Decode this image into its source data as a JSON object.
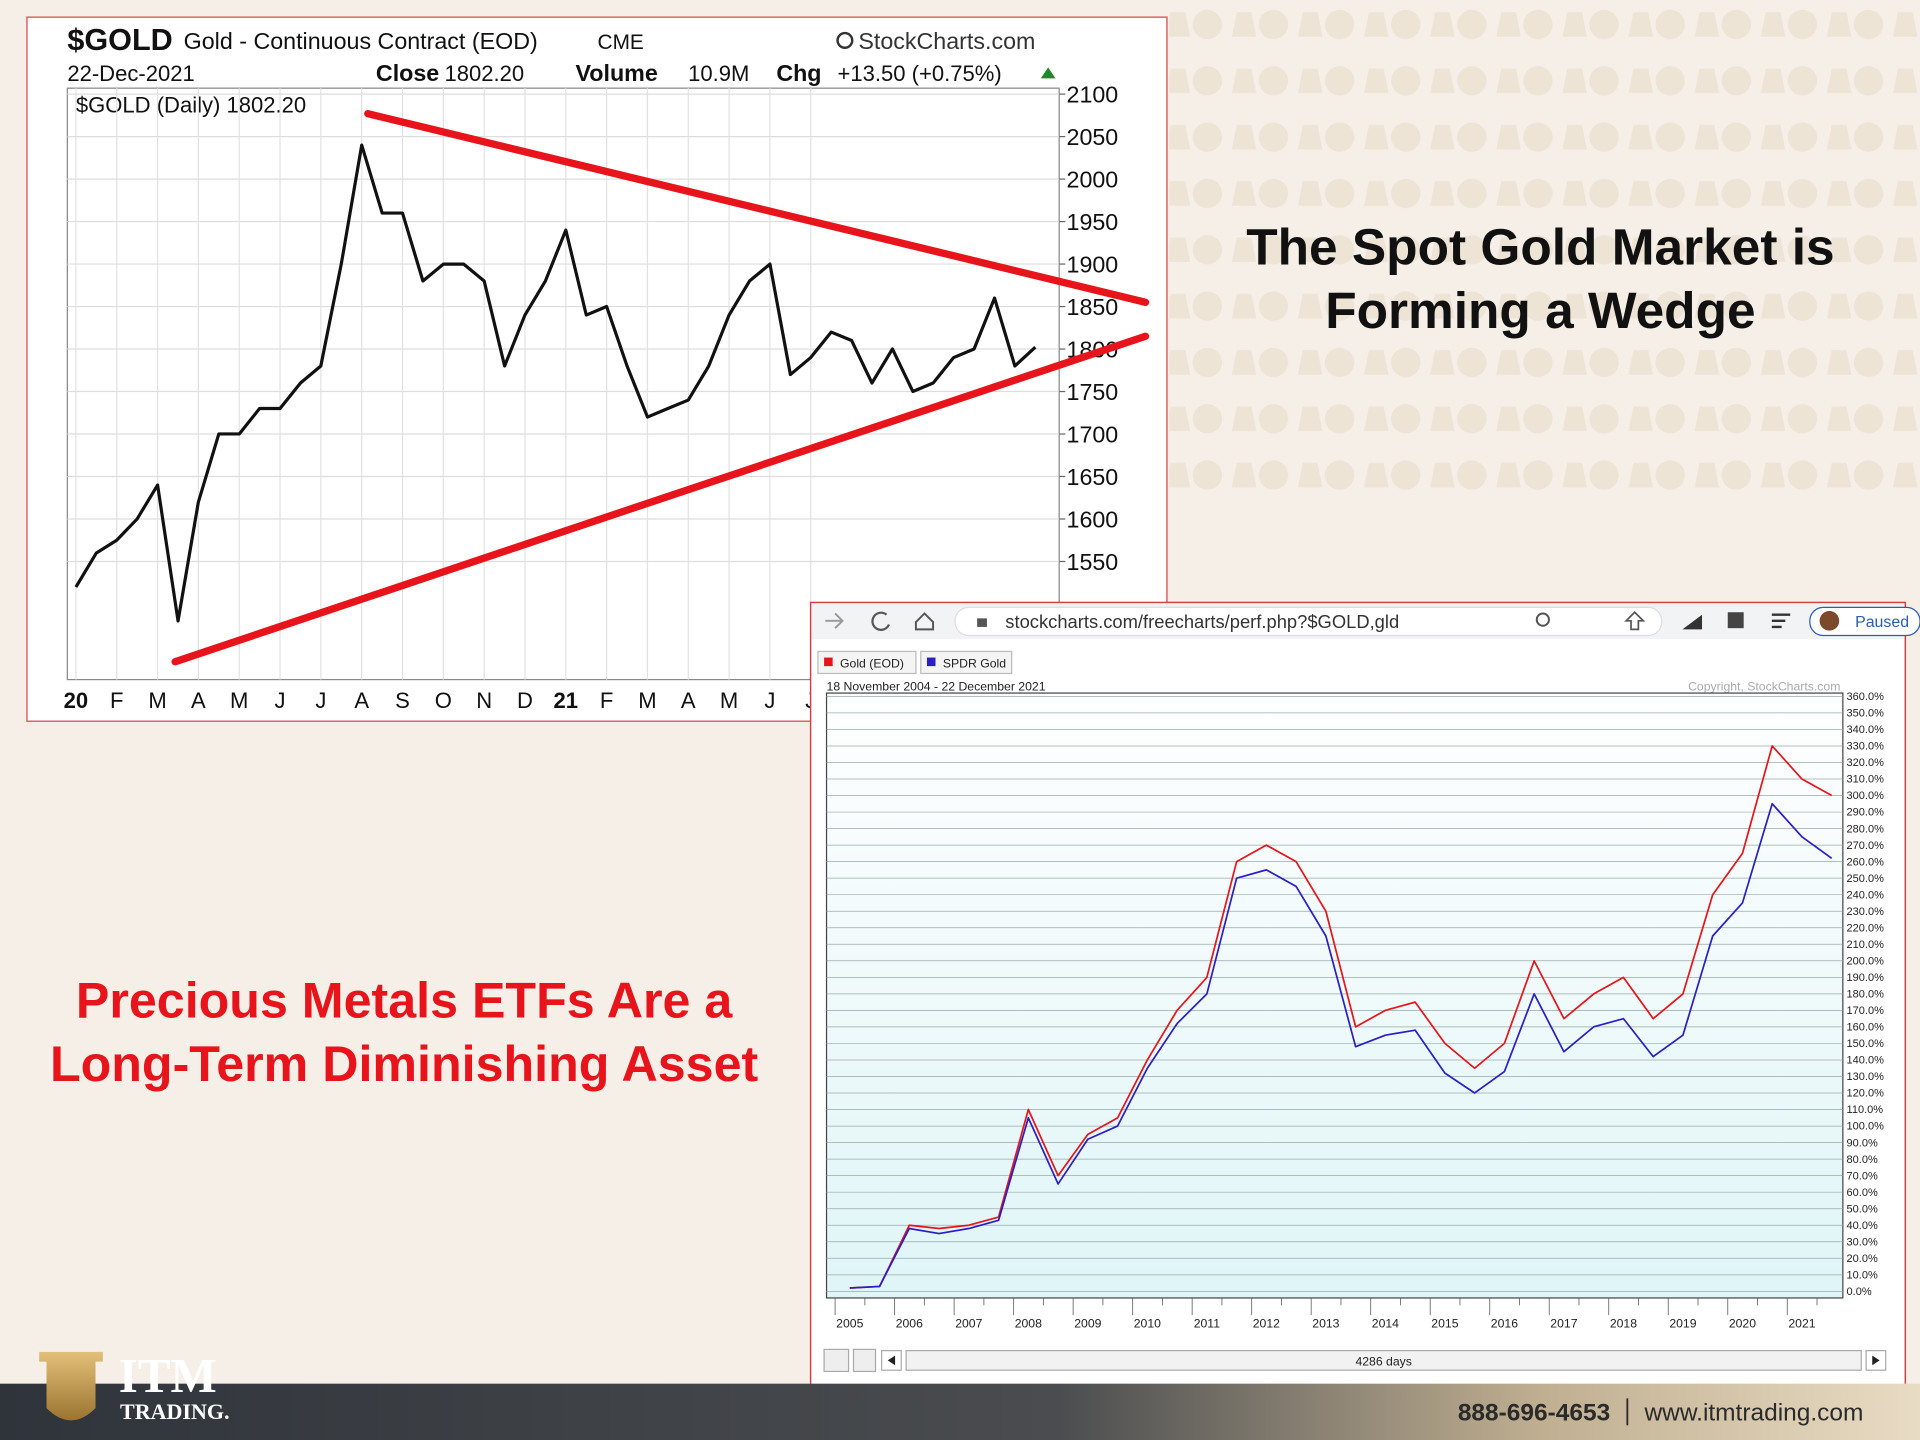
{
  "slide": {
    "headline_1": [
      "The Spot Gold Market is",
      "Forming a Wedge"
    ],
    "headline_2": [
      "Precious Metals ETFs Are a",
      "Long-Term Diminishing Asset"
    ],
    "logo": [
      "ITM",
      "TRADING."
    ],
    "phone": "888-696-4653",
    "website": "www.itmtrading.com"
  },
  "browser": {
    "url": "stockcharts.com/freecharts/perf.php?$GOLD,gld",
    "status": "Paused"
  },
  "chart_data": [
    {
      "type": "line",
      "symbol": "$GOLD",
      "title": "Gold - Continuous Contract (EOD)",
      "exchange": "CME",
      "source": "StockCharts.com",
      "date": "22-Dec-2021",
      "close_label": "Close",
      "close": "1802.20",
      "volume_label": "Volume",
      "volume": "10.9M",
      "chg_label": "Chg",
      "chg": "+13.50 (+0.75%)",
      "categories": [
        "20",
        null,
        "F",
        null,
        "M",
        null,
        "A",
        null,
        "M",
        null,
        "J",
        null,
        "J",
        null,
        "A",
        null,
        "S",
        null,
        "O",
        null,
        "N",
        null,
        "D",
        null,
        "21",
        null,
        "F",
        null,
        "M",
        null,
        "A",
        null,
        "M",
        null,
        "J",
        null,
        "J",
        null,
        null,
        null,
        null,
        null,
        null,
        null,
        null,
        null,
        null,
        null
      ],
      "series": [
        {
          "name": "$GOLD (Daily) 1802.20",
          "color": "#111111",
          "values": [
            1520,
            1560,
            1575,
            1600,
            1640,
            1480,
            1620,
            1700,
            1700,
            1730,
            1730,
            1760,
            1780,
            1900,
            2040,
            1960,
            1960,
            1880,
            1900,
            1900,
            1880,
            1780,
            1840,
            1880,
            1940,
            1840,
            1850,
            1780,
            1720,
            1730,
            1740,
            1780,
            1840,
            1880,
            1900,
            1770,
            1790,
            1820,
            1810,
            1760,
            1800,
            1750,
            1760,
            1790,
            1800,
            1860,
            1780,
            1802.2
          ]
        }
      ],
      "ylim": [
        1411,
        2107
      ],
      "yticks": [
        1550,
        1600,
        1650,
        1700,
        1750,
        1800,
        1850,
        1900,
        1950,
        2000,
        2050,
        2100
      ],
      "grid": true,
      "trendlines": [
        {
          "color": "#e8141b",
          "x": [
            4.86,
            52.4
          ],
          "values": [
            1432,
            1815
          ]
        },
        {
          "color": "#e8141b",
          "x": [
            14.3,
            52.4
          ],
          "values": [
            2077,
            1855
          ]
        }
      ]
    },
    {
      "type": "line",
      "date_range": "18 November 2004 - 22 December 2021",
      "copyright": "Copyright, StockCharts.com",
      "footer": "4286 days",
      "categories": [
        "2005",
        null,
        "2006",
        null,
        "2007",
        null,
        "2008",
        null,
        "2009",
        null,
        "2010",
        null,
        "2011",
        null,
        "2012",
        null,
        "2013",
        null,
        "2014",
        null,
        "2015",
        null,
        "2016",
        null,
        "2017",
        null,
        "2018",
        null,
        "2019",
        null,
        "2020",
        null,
        "2021",
        null
      ],
      "series": [
        {
          "name": "Gold (EOD)",
          "color": "#e8141b",
          "values": [
            2,
            3,
            40,
            38,
            40,
            45,
            110,
            70,
            95,
            105,
            140,
            170,
            190,
            260,
            270,
            260,
            230,
            160,
            170,
            175,
            150,
            135,
            150,
            200,
            165,
            180,
            190,
            165,
            180,
            240,
            265,
            330,
            310,
            300
          ]
        },
        {
          "name": "SPDR Gold",
          "color": "#2a1fc4",
          "values": [
            2,
            3,
            38,
            35,
            38,
            43,
            105,
            65,
            92,
            100,
            135,
            162,
            180,
            250,
            255,
            245,
            215,
            148,
            155,
            158,
            132,
            120,
            133,
            180,
            145,
            160,
            165,
            142,
            155,
            215,
            235,
            295,
            275,
            262
          ]
        }
      ],
      "ylim": [
        -4,
        362
      ],
      "yticks": [
        {
          "value": 0,
          "label": "0.0%"
        },
        {
          "value": 10,
          "label": "10.0%"
        },
        {
          "value": 20,
          "label": "20.0%"
        },
        {
          "value": 30,
          "label": "30.0%"
        },
        {
          "value": 40,
          "label": "40.0%"
        },
        {
          "value": 50,
          "label": "50.0%"
        },
        {
          "value": 60,
          "label": "60.0%"
        },
        {
          "value": 70,
          "label": "70.0%"
        },
        {
          "value": 80,
          "label": "80.0%"
        },
        {
          "value": 90,
          "label": "90.0%"
        },
        {
          "value": 100,
          "label": "100.0%"
        },
        {
          "value": 110,
          "label": "110.0%"
        },
        {
          "value": 120,
          "label": "120.0%"
        },
        {
          "value": 130,
          "label": "130.0%"
        },
        {
          "value": 140,
          "label": "140.0%"
        },
        {
          "value": 150,
          "label": "150.0%"
        },
        {
          "value": 160,
          "label": "160.0%"
        },
        {
          "value": 170,
          "label": "170.0%"
        },
        {
          "value": 180,
          "label": "180.0%"
        },
        {
          "value": 190,
          "label": "190.0%"
        },
        {
          "value": 200,
          "label": "200.0%"
        },
        {
          "value": 210,
          "label": "210.0%"
        },
        {
          "value": 220,
          "label": "220.0%"
        },
        {
          "value": 230,
          "label": "230.0%"
        },
        {
          "value": 240,
          "label": "240.0%"
        },
        {
          "value": 250,
          "label": "250.0%"
        },
        {
          "value": 260,
          "label": "260.0%"
        },
        {
          "value": 270,
          "label": "270.0%"
        },
        {
          "value": 280,
          "label": "280.0%"
        },
        {
          "value": 290,
          "label": "290.0%"
        },
        {
          "value": 300,
          "label": "300.0%"
        },
        {
          "value": 310,
          "label": "310.0%"
        },
        {
          "value": 320,
          "label": "320.0%"
        },
        {
          "value": 330,
          "label": "330.0%"
        },
        {
          "value": 340,
          "label": "340.0%"
        },
        {
          "value": 350,
          "label": "350.0%"
        },
        {
          "value": 360,
          "label": "360.0%"
        }
      ],
      "grid": true
    }
  ]
}
